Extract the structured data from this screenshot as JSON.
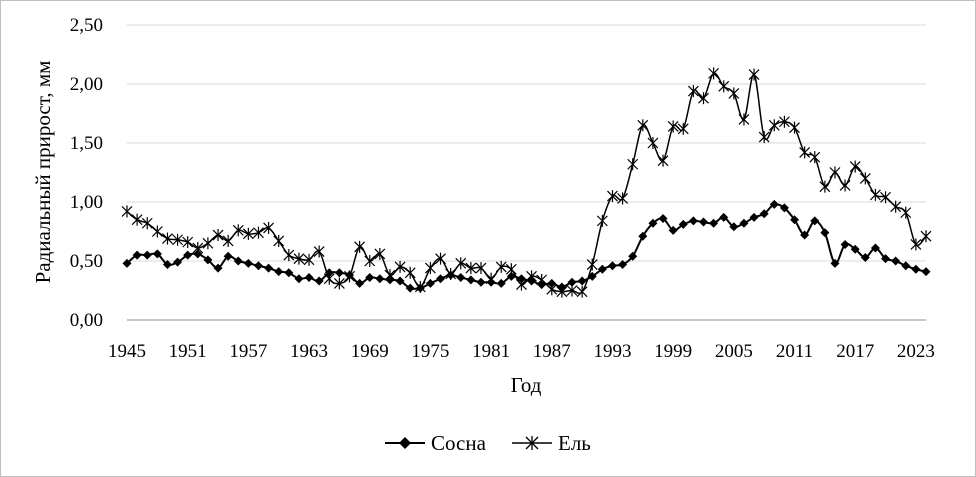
{
  "chart_data": {
    "type": "line",
    "title": "",
    "xlabel": "Год",
    "ylabel": "Радиальный прирост, мм",
    "ylim": [
      0,
      2.5
    ],
    "yticks": [
      "0,00",
      "0,50",
      "1,00",
      "1,50",
      "2,00",
      "2,50"
    ],
    "xlim": [
      1945,
      2024
    ],
    "xticks": [
      "1945",
      "1951",
      "1957",
      "1963",
      "1969",
      "1975",
      "1981",
      "1987",
      "1993",
      "1999",
      "2005",
      "2011",
      "2017",
      "2023"
    ],
    "grid": "horizontal",
    "legend_position": "bottom",
    "x": [
      1945,
      1946,
      1947,
      1948,
      1949,
      1950,
      1951,
      1952,
      1953,
      1954,
      1955,
      1956,
      1957,
      1958,
      1959,
      1960,
      1961,
      1962,
      1963,
      1964,
      1965,
      1966,
      1967,
      1968,
      1969,
      1970,
      1971,
      1972,
      1973,
      1974,
      1975,
      1976,
      1977,
      1978,
      1979,
      1980,
      1981,
      1982,
      1983,
      1984,
      1985,
      1986,
      1987,
      1988,
      1989,
      1990,
      1991,
      1992,
      1993,
      1994,
      1995,
      1996,
      1997,
      1998,
      1999,
      2000,
      2001,
      2002,
      2003,
      2004,
      2005,
      2006,
      2007,
      2008,
      2009,
      2010,
      2011,
      2012,
      2013,
      2014,
      2015,
      2016,
      2017,
      2018,
      2019,
      2020,
      2021,
      2022,
      2023,
      2024
    ],
    "series": [
      {
        "name": "Сосна",
        "color": "#000000",
        "marker": "diamond",
        "values": [
          0.48,
          0.55,
          0.55,
          0.56,
          0.47,
          0.49,
          0.55,
          0.56,
          0.51,
          0.44,
          0.54,
          0.5,
          0.48,
          0.46,
          0.44,
          0.41,
          0.4,
          0.35,
          0.36,
          0.33,
          0.4,
          0.4,
          0.38,
          0.31,
          0.36,
          0.35,
          0.34,
          0.33,
          0.27,
          0.27,
          0.31,
          0.35,
          0.38,
          0.36,
          0.34,
          0.32,
          0.32,
          0.31,
          0.37,
          0.35,
          0.33,
          0.3,
          0.31,
          0.28,
          0.32,
          0.33,
          0.37,
          0.43,
          0.46,
          0.47,
          0.54,
          0.71,
          0.82,
          0.86,
          0.76,
          0.81,
          0.84,
          0.83,
          0.82,
          0.87,
          0.79,
          0.82,
          0.87,
          0.9,
          0.98,
          0.95,
          0.85,
          0.72,
          0.84,
          0.74,
          0.48,
          0.64,
          0.6,
          0.53,
          0.61,
          0.52,
          0.5,
          0.46,
          0.43,
          0.41
        ]
      },
      {
        "name": "Ель",
        "color": "#000000",
        "marker": "asterisk",
        "values": [
          0.92,
          0.85,
          0.82,
          0.75,
          0.69,
          0.68,
          0.66,
          0.61,
          0.65,
          0.72,
          0.67,
          0.76,
          0.73,
          0.74,
          0.78,
          0.67,
          0.55,
          0.52,
          0.51,
          0.58,
          0.35,
          0.31,
          0.37,
          0.62,
          0.5,
          0.56,
          0.38,
          0.45,
          0.4,
          0.28,
          0.44,
          0.52,
          0.39,
          0.48,
          0.44,
          0.44,
          0.35,
          0.45,
          0.43,
          0.3,
          0.37,
          0.34,
          0.26,
          0.24,
          0.25,
          0.24,
          0.47,
          0.84,
          1.05,
          1.03,
          1.32,
          1.65,
          1.5,
          1.35,
          1.64,
          1.62,
          1.94,
          1.88,
          2.09,
          1.98,
          1.92,
          1.7,
          2.08,
          1.55,
          1.65,
          1.68,
          1.63,
          1.42,
          1.38,
          1.13,
          1.25,
          1.14,
          1.3,
          1.2,
          1.06,
          1.04,
          0.96,
          0.91,
          0.64,
          0.71
        ]
      }
    ]
  }
}
